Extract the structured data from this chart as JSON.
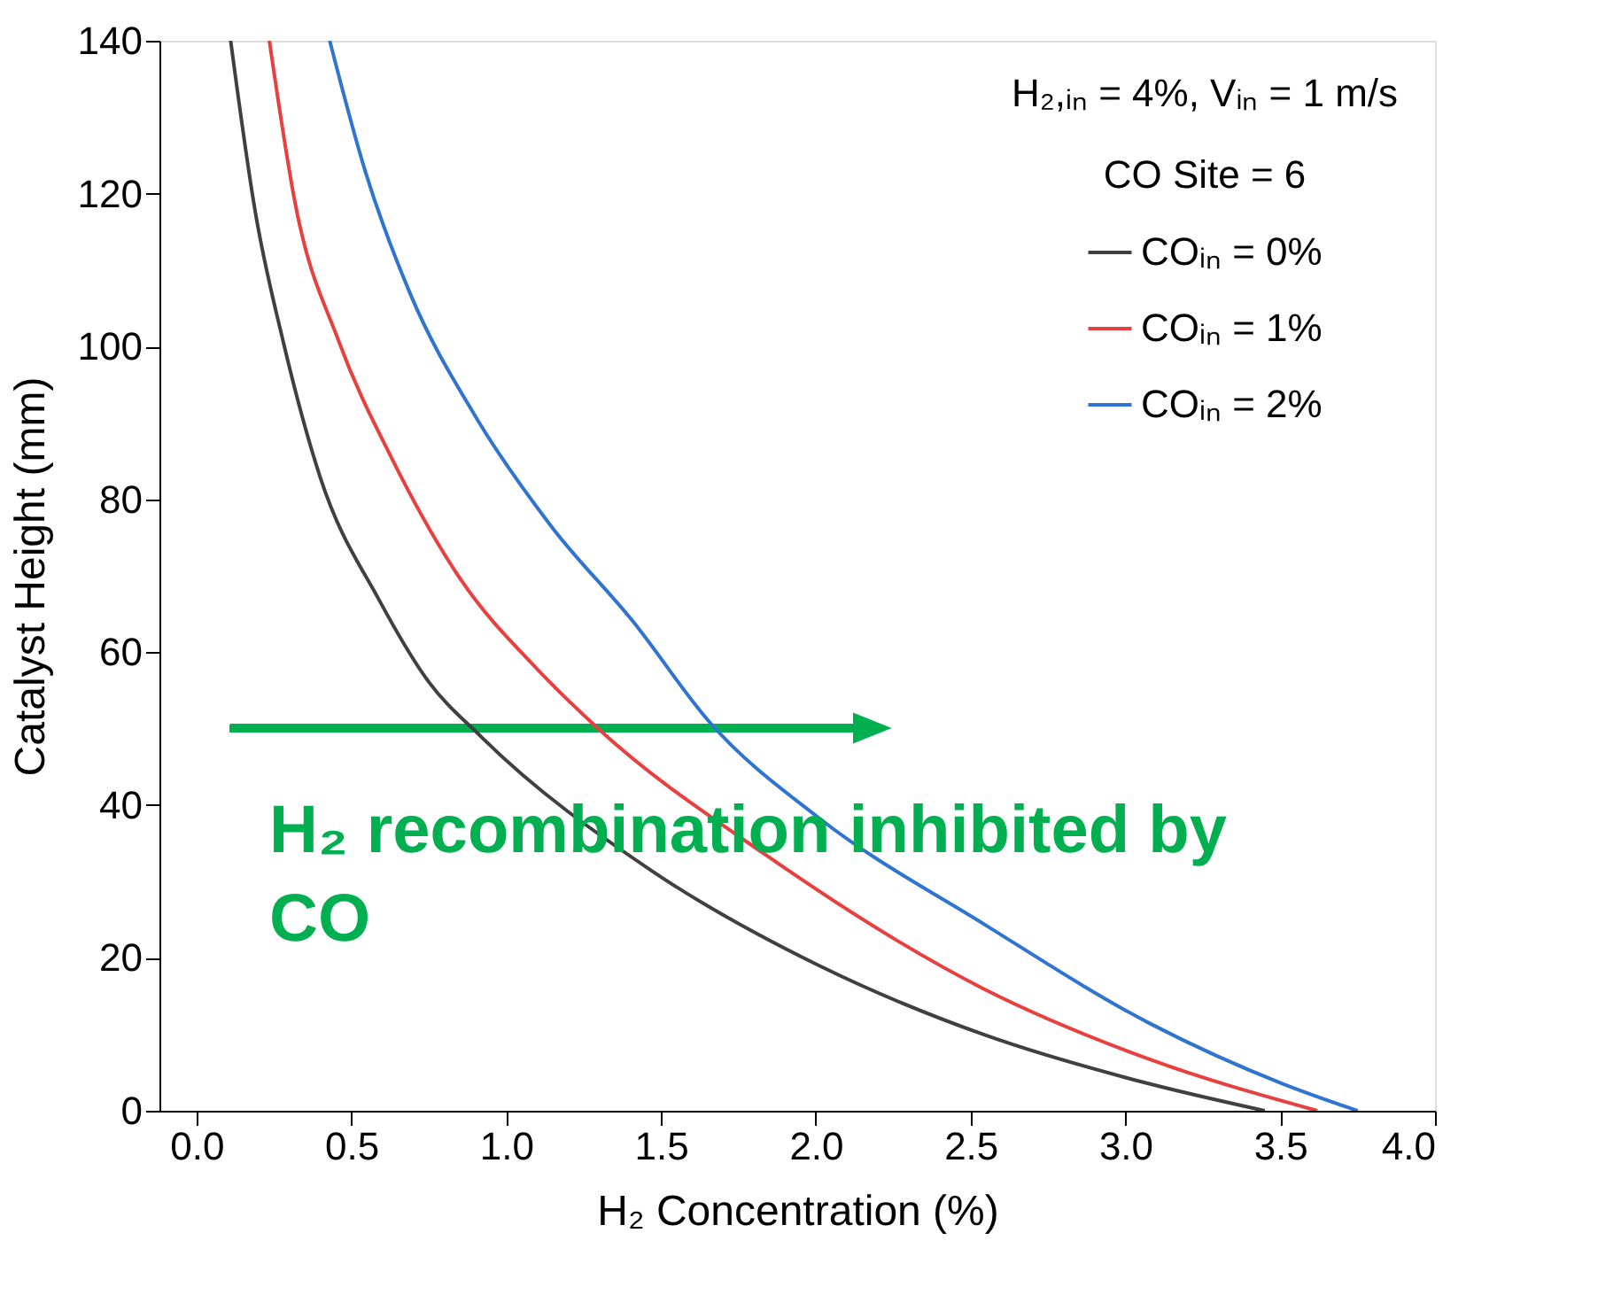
{
  "chart_data": {
    "type": "line",
    "xlabel": "H₂ Concentration (%)",
    "ylabel": "Catalyst Height (mm)",
    "legend_title": "H₂,ᵢₙ = 4%, Vᵢₙ = 1 m/s\nCO Site = 6",
    "series": [
      {
        "name": "COᵢₙ = 0%",
        "color": "#404040",
        "x": [
          0.11,
          0.19,
          0.28,
          0.4,
          0.59,
          0.75,
          0.92,
          1.47,
          2.01,
          2.54,
          3.08,
          3.45
        ],
        "values": [
          140,
          117.5,
          100.6,
          82.8,
          66.8,
          56.1,
          48.9,
          31.4,
          19,
          10,
          3.5,
          0
        ]
      },
      {
        "name": "COᵢₙ = 1%",
        "color": "#e8403f",
        "x": [
          0.235,
          0.32,
          0.46,
          0.63,
          0.855,
          1.1,
          1.3,
          1.83,
          2.54,
          3.08,
          3.62
        ],
        "values": [
          140,
          118.4,
          100.6,
          85.4,
          69.4,
          57.8,
          49.9,
          33.7,
          16,
          6.7,
          0
        ]
      },
      {
        "name": "COᵢₙ = 2%",
        "color": "#2f74d0",
        "x": [
          0.43,
          0.545,
          0.69,
          0.9,
          1.145,
          1.41,
          1.66,
          2.01,
          2.54,
          3.08,
          3.51,
          3.75
        ],
        "values": [
          140,
          122.9,
          106.9,
          90.9,
          76.5,
          64,
          50.7,
          38.3,
          24.5,
          11.4,
          3.5,
          0
        ]
      }
    ],
    "xlim": [
      -0.12,
      4.0
    ],
    "ylim": [
      0,
      140
    ],
    "xticks": [
      {
        "value": 0,
        "label": "0.0"
      },
      0.5,
      {
        "value": 1,
        "label": "1.0"
      },
      1.5,
      {
        "value": 2,
        "label": "2.0"
      },
      2.5,
      {
        "value": 3,
        "label": "3.0"
      },
      3.5,
      {
        "value": 4,
        "label": "4.0"
      }
    ],
    "yticks": [
      0,
      20,
      40,
      60,
      80,
      100,
      120,
      140
    ],
    "annotations": [
      "H₂ recombination inhibited by CO"
    ],
    "legend": "top right",
    "grid": false,
    "marker": "none",
    "line_style": "solid"
  }
}
